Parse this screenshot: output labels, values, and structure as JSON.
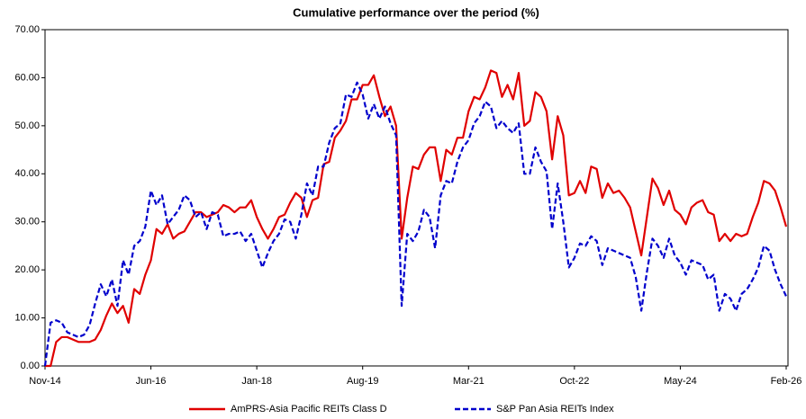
{
  "chart_data": {
    "type": "line",
    "title": "Cumulative performance over the period (%)",
    "categories": [
      "Nov-14",
      null,
      null,
      null,
      null,
      null,
      null,
      null,
      null,
      null,
      null,
      null,
      null,
      null,
      null,
      null,
      null,
      null,
      null,
      "Jun-16",
      null,
      null,
      null,
      null,
      null,
      null,
      null,
      null,
      null,
      null,
      null,
      null,
      null,
      null,
      null,
      null,
      null,
      null,
      "Jan-18",
      null,
      null,
      null,
      null,
      null,
      null,
      null,
      null,
      null,
      null,
      null,
      null,
      null,
      null,
      null,
      null,
      null,
      null,
      "Aug-19",
      null,
      null,
      null,
      null,
      null,
      null,
      null,
      null,
      null,
      null,
      null,
      null,
      null,
      null,
      null,
      null,
      null,
      null,
      "Mar-21",
      null,
      null,
      null,
      null,
      null,
      null,
      null,
      null,
      null,
      null,
      null,
      null,
      null,
      null,
      null,
      null,
      null,
      null,
      "Oct-22",
      null,
      null,
      null,
      null,
      null,
      null,
      null,
      null,
      null,
      null,
      null,
      null,
      null,
      null,
      null,
      null,
      null,
      null,
      "May-24",
      null,
      null,
      null,
      null,
      null,
      null,
      null,
      null,
      null,
      null,
      null,
      null,
      null,
      null,
      null,
      null,
      null,
      null,
      "Feb-26"
    ],
    "series": [
      {
        "name": "AmPRS-Asia Pacific REITs Class D",
        "color": "#e00000",
        "dash": false,
        "values": [
          0,
          0,
          5,
          6,
          6,
          5.5,
          5,
          5,
          5,
          5.5,
          7.5,
          10.5,
          13,
          11,
          12.5,
          9,
          16,
          15,
          19,
          22,
          28.5,
          27.5,
          29.5,
          26.5,
          27.5,
          28,
          30,
          32,
          32,
          31,
          31.5,
          32,
          33.5,
          33,
          32,
          33,
          33,
          34.5,
          31,
          28.5,
          26.5,
          28.5,
          31,
          31.5,
          34,
          36,
          35,
          31,
          34.5,
          35,
          42,
          42.5,
          47.5,
          49,
          51,
          55.5,
          55.5,
          58.5,
          58.5,
          60.5,
          56,
          52,
          54,
          50,
          26.5,
          35,
          41.5,
          41,
          44,
          45.5,
          45.5,
          38.5,
          45,
          44,
          47.5,
          47.5,
          53,
          56,
          55.5,
          58,
          61.5,
          61,
          56,
          58.5,
          55.5,
          61,
          50,
          51,
          57,
          56,
          53,
          43,
          52,
          48,
          35.5,
          36,
          38.5,
          36,
          41.5,
          41,
          35,
          38,
          36,
          36.5,
          35,
          33,
          28,
          23,
          31,
          39,
          37,
          33.5,
          36.5,
          32.5,
          31.5,
          29.5,
          33,
          34,
          34.5,
          32,
          31.5,
          26,
          27.5,
          26,
          27.5,
          27,
          27.5,
          31,
          34,
          38.5,
          38,
          36.5,
          33,
          29
        ]
      },
      {
        "name": "S&P Pan Asia REITs Index",
        "color": "#0000cc",
        "dash": true,
        "values": [
          0,
          9,
          9.5,
          9,
          7,
          6.5,
          6,
          6.5,
          8.5,
          13,
          17,
          14.5,
          18,
          12.5,
          22,
          19,
          25,
          26,
          29,
          36.5,
          33.5,
          35.5,
          29.5,
          31,
          32.5,
          35.5,
          34.5,
          31,
          32,
          28.5,
          32,
          31.5,
          27,
          27.5,
          27.5,
          28,
          26,
          27.5,
          24,
          20.5,
          23.5,
          26,
          27.5,
          30.5,
          30,
          26.5,
          31.5,
          38,
          35.5,
          41.5,
          41.5,
          46.5,
          49.5,
          50.5,
          56.5,
          56,
          59,
          56.5,
          51.5,
          54.5,
          51.5,
          54,
          50.5,
          48,
          12.5,
          27.5,
          26,
          28,
          32.5,
          31,
          24.5,
          35.5,
          38.5,
          38,
          42.5,
          45.5,
          47,
          50.5,
          52,
          55,
          54,
          49.5,
          51,
          49.5,
          48.5,
          50.5,
          40,
          40,
          45.5,
          42.5,
          40.5,
          28.5,
          38,
          30,
          20.5,
          22.5,
          25.5,
          25,
          27,
          26,
          21,
          24.5,
          24,
          23.5,
          23,
          22.5,
          18.5,
          11.5,
          19.5,
          26.5,
          25,
          22.5,
          26.5,
          23,
          21.5,
          19,
          22,
          21.5,
          21,
          18,
          19,
          11.5,
          15,
          14,
          11.5,
          15,
          16,
          18,
          20.5,
          25,
          24,
          20,
          17,
          14.5
        ]
      }
    ],
    "ylim": [
      0,
      70
    ],
    "yticks": [
      {
        "value": 0,
        "label": "0.00"
      },
      {
        "value": 10,
        "label": "10.00"
      },
      {
        "value": 20,
        "label": "20.00"
      },
      {
        "value": 30,
        "label": "30.00"
      },
      {
        "value": 40,
        "label": "40.00"
      },
      {
        "value": 50,
        "label": "50.00"
      },
      {
        "value": 60,
        "label": "60.00"
      },
      {
        "value": 70,
        "label": "70.00"
      }
    ],
    "grid": false,
    "legend": "bottom"
  }
}
